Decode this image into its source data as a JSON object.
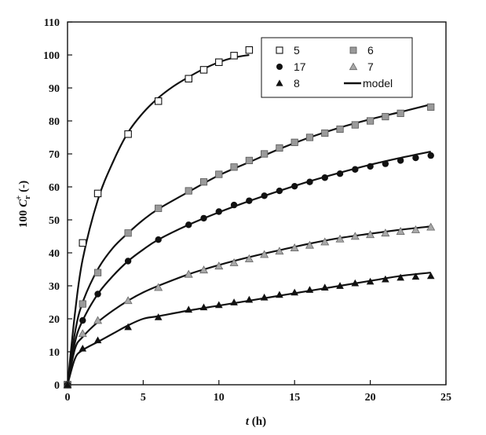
{
  "chart_data": {
    "type": "scatter",
    "xlabel": "t (h)",
    "ylabel": "100 C_r^+ (-)",
    "xlim": [
      0,
      25
    ],
    "ylim": [
      0,
      110
    ],
    "xticks": [
      0,
      5,
      10,
      15,
      20,
      25
    ],
    "yticks": [
      0,
      10,
      20,
      30,
      40,
      50,
      60,
      70,
      80,
      90,
      100,
      110
    ],
    "grid": false,
    "legend_position": "top-right",
    "legend": [
      {
        "label": "5",
        "marker": "square-open"
      },
      {
        "label": "6",
        "marker": "square-gray"
      },
      {
        "label": "17",
        "marker": "circle-black"
      },
      {
        "label": "7",
        "marker": "triangle-gray"
      },
      {
        "label": "8",
        "marker": "triangle-black"
      },
      {
        "label": "model",
        "marker": "line"
      }
    ],
    "series": [
      {
        "name": "5",
        "marker": "square-open",
        "x": [
          0,
          1,
          2,
          4,
          6,
          8,
          9,
          10,
          11,
          12
        ],
        "y": [
          0,
          43,
          58,
          76,
          86,
          92.8,
          95.5,
          97.8,
          99.8,
          101.5
        ]
      },
      {
        "name": "6",
        "marker": "square-gray",
        "x": [
          0,
          1,
          2,
          4,
          6,
          8,
          9,
          10,
          11,
          12,
          13,
          14,
          15,
          16,
          17,
          18,
          19,
          20,
          21,
          22,
          24
        ],
        "y": [
          0,
          24.5,
          34,
          46,
          53.5,
          58.8,
          61.5,
          63.8,
          66,
          68,
          70,
          71.8,
          73.5,
          75,
          76.3,
          77.5,
          78.8,
          80,
          81.3,
          82.3,
          84.2
        ]
      },
      {
        "name": "17",
        "marker": "circle-black",
        "x": [
          0,
          1,
          2,
          4,
          6,
          8,
          9,
          10,
          11,
          12,
          13,
          14,
          15,
          16,
          17,
          18,
          19,
          20,
          21,
          22,
          23,
          24
        ],
        "y": [
          0,
          19.5,
          27.5,
          37.5,
          44,
          48.5,
          50.5,
          52.5,
          54.5,
          55.8,
          57.3,
          58.8,
          60.2,
          61.5,
          62.8,
          64,
          65.3,
          66.2,
          67,
          68,
          68.8,
          69.5
        ]
      },
      {
        "name": "7",
        "marker": "triangle-gray",
        "x": [
          0,
          1,
          2,
          4,
          6,
          8,
          9,
          10,
          11,
          12,
          13,
          14,
          15,
          16,
          17,
          18,
          19,
          20,
          21,
          22,
          23,
          24
        ],
        "y": [
          0,
          15.5,
          19.5,
          25.5,
          29.5,
          33.5,
          34.8,
          36,
          37,
          38.2,
          39.5,
          40.5,
          41.5,
          42.3,
          43.3,
          44.2,
          45,
          45.5,
          46,
          46.5,
          47,
          47.8
        ]
      },
      {
        "name": "8",
        "marker": "triangle-black",
        "x": [
          0,
          1,
          2,
          4,
          6,
          8,
          9,
          10,
          11,
          12,
          13,
          14,
          15,
          16,
          17,
          18,
          19,
          20,
          21,
          22,
          23,
          24
        ],
        "y": [
          0,
          11,
          13.5,
          17.5,
          20.5,
          22.8,
          23.5,
          24.2,
          25,
          25.8,
          26.5,
          27.3,
          28,
          28.8,
          29.5,
          30,
          30.8,
          31.3,
          32,
          32.5,
          32.8,
          33
        ]
      }
    ],
    "model_curves": [
      {
        "name": "model",
        "x": [
          0,
          0.5,
          1,
          2,
          3,
          4,
          5,
          6,
          7,
          8,
          9,
          10,
          11,
          12
        ],
        "y": [
          0,
          22,
          38,
          56,
          67.5,
          76.5,
          82.5,
          87,
          90.5,
          93.3,
          95.8,
          97.8,
          99.2,
          100
        ]
      },
      {
        "name": "model",
        "x": [
          0,
          0.5,
          1,
          2,
          3,
          4,
          5,
          6,
          8,
          10,
          12,
          14,
          16,
          18,
          20,
          22,
          24
        ],
        "y": [
          0,
          16,
          25,
          35,
          41.5,
          46,
          50,
          53.3,
          58.5,
          63.5,
          67.5,
          71.5,
          75,
          78,
          80.5,
          82.7,
          85
        ]
      },
      {
        "name": "model",
        "x": [
          0,
          0.5,
          1,
          2,
          3,
          4,
          5,
          6,
          8,
          10,
          12,
          14,
          16,
          18,
          20,
          22,
          24
        ],
        "y": [
          0,
          13,
          19.5,
          27.5,
          33,
          37.5,
          41,
          44,
          48.5,
          52.3,
          55.7,
          58.8,
          61.7,
          64.3,
          66.7,
          68.8,
          70.7
        ]
      },
      {
        "name": "model",
        "x": [
          0,
          0.5,
          1,
          2,
          3,
          4,
          5,
          6,
          8,
          10,
          12,
          14,
          16,
          18,
          20,
          22,
          24
        ],
        "y": [
          0,
          11,
          14.5,
          19,
          22.5,
          25.5,
          28,
          30,
          33.5,
          36.3,
          38.7,
          40.8,
          42.8,
          44.5,
          45.8,
          47,
          48
        ]
      },
      {
        "name": "model",
        "x": [
          0,
          0.5,
          1,
          2,
          3,
          4,
          5,
          6,
          8,
          10,
          12,
          14,
          16,
          18,
          20,
          22,
          24
        ],
        "y": [
          0,
          8,
          10.5,
          13,
          15.5,
          18,
          20,
          20.8,
          22.5,
          24,
          25.5,
          27,
          28.5,
          30,
          31.5,
          33,
          34
        ]
      }
    ]
  }
}
